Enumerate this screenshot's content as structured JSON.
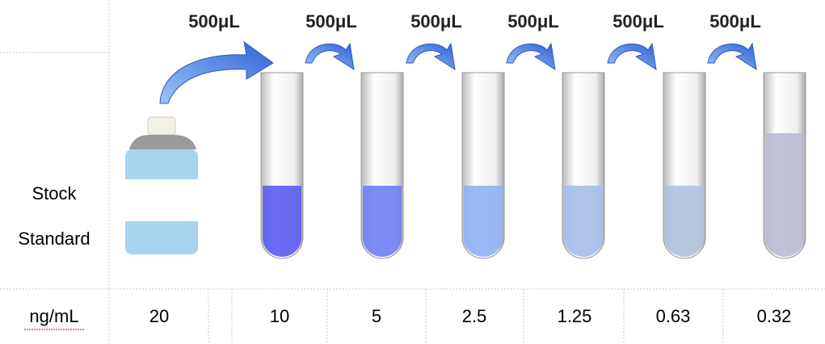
{
  "left_label": {
    "lines": [
      "Stock",
      "Standard"
    ]
  },
  "transfer_labels": [
    "500μL",
    "500μL",
    "500μL",
    "500μL",
    "500μL",
    "500μL"
  ],
  "row_header": "ng/mL",
  "concentrations": [
    20,
    10,
    5,
    2.5,
    1.25,
    0.63,
    0.32
  ]
}
